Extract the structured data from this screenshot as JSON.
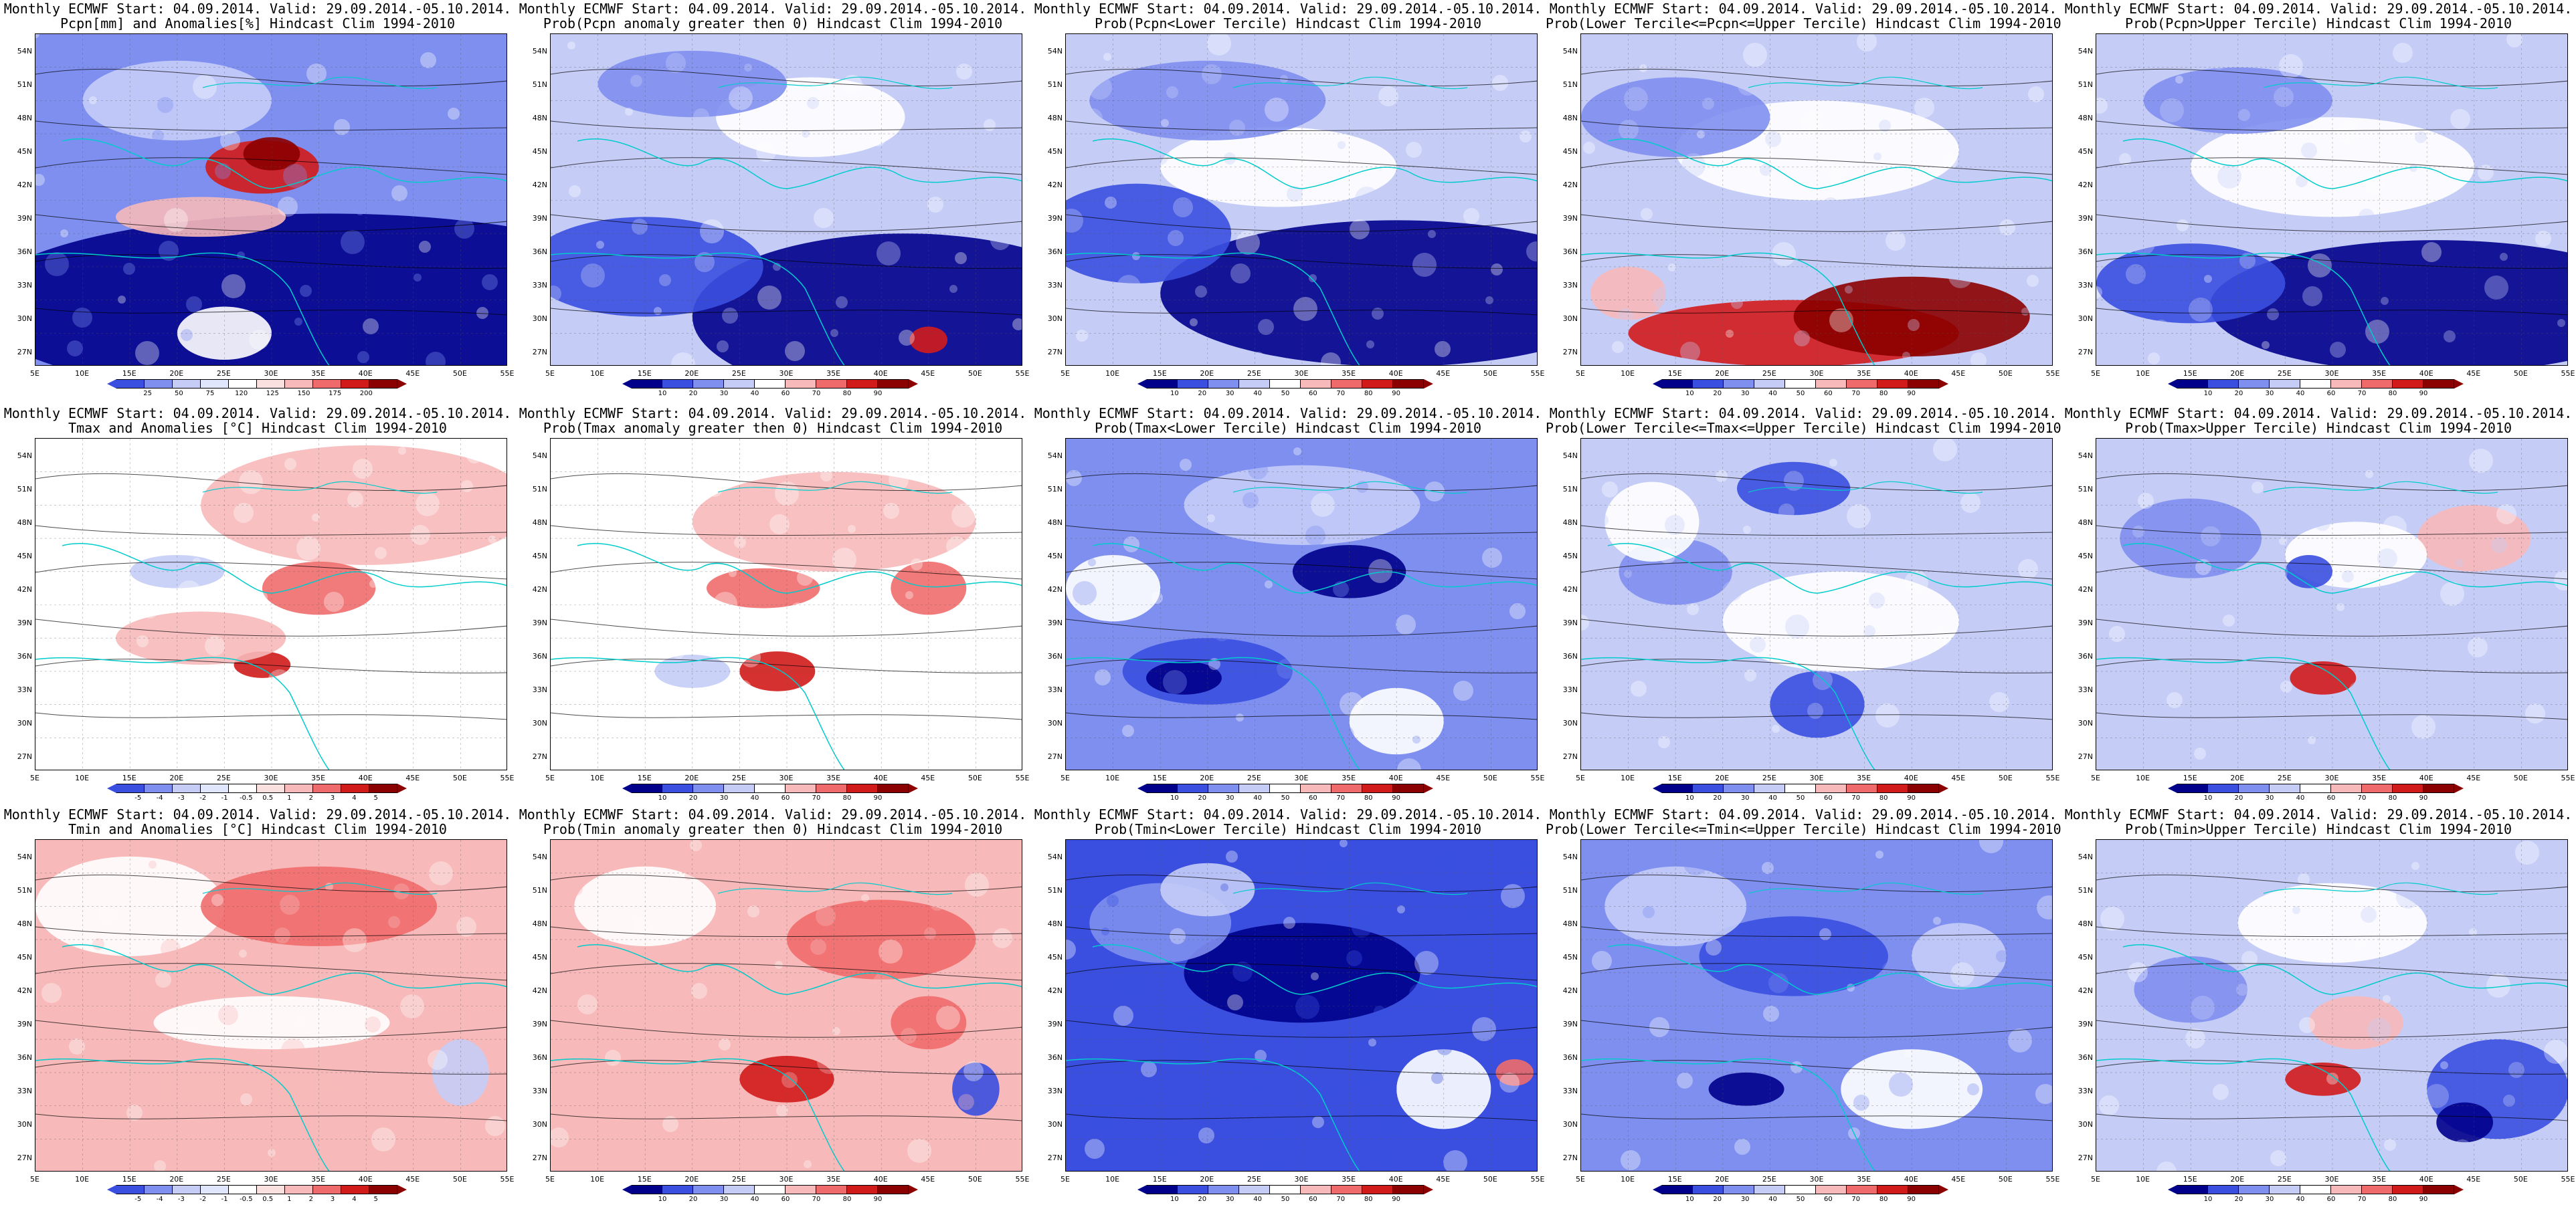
{
  "colors": {
    "deep_blue": "#00008b",
    "blue": "#3a4fe0",
    "mid_blue": "#7f8ff0",
    "light_blue": "#c5cdf7",
    "white": "#ffffff",
    "light_red": "#f7b9b9",
    "mid_red": "#ef6b6b",
    "red": "#d11b1b",
    "dark_red": "#8b0000",
    "coast": "#00cccc",
    "contour": "#000000"
  },
  "y_axis_labels": [
    "54N",
    "51N",
    "48N",
    "45N",
    "42N",
    "39N",
    "36N",
    "33N",
    "30N",
    "27N"
  ],
  "x_axis_labels": [
    "5E",
    "10E",
    "15E",
    "20E",
    "25E",
    "30E",
    "35E",
    "40E",
    "45E",
    "50E",
    "55E"
  ],
  "panels": [
    {
      "line1": "Monthly ECMWF Start: 04.09.2014. Valid: 29.09.2014.-05.10.2014.",
      "line2": "Pcpn[mm] and Anomalies[%] Hindcast Clim 1994-2010",
      "scheme": "pcpn_anom",
      "colorbar_ticks": [
        "25",
        "50",
        "75",
        "120",
        "125",
        "150",
        "175",
        "200"
      ]
    },
    {
      "line1": "Monthly ECMWF Start: 04.09.2014. Valid: 29.09.2014.-05.10.2014.",
      "line2": "Prob(Pcpn anomaly greater then 0) Hindcast Clim 1994-2010",
      "scheme": "pcpn_gt0",
      "colorbar_ticks": [
        "10",
        "20",
        "30",
        "40",
        "60",
        "70",
        "80",
        "90"
      ]
    },
    {
      "line1": "Monthly ECMWF Start: 04.09.2014. Valid: 29.09.2014.-05.10.2014.",
      "line2": "Prob(Pcpn<Lower Tercile) Hindcast Clim 1994-2010",
      "scheme": "pcpn_lower",
      "colorbar_ticks": [
        "10",
        "20",
        "30",
        "40",
        "50",
        "60",
        "70",
        "80",
        "90"
      ]
    },
    {
      "line1": "Monthly ECMWF Start: 04.09.2014. Valid: 29.09.2014.-05.10.2014.",
      "line2": "Prob(Lower Tercile<=Pcpn<=Upper Tercile) Hindcast Clim 1994-2010",
      "scheme": "pcpn_mid",
      "colorbar_ticks": [
        "10",
        "20",
        "30",
        "40",
        "50",
        "60",
        "70",
        "80",
        "90"
      ]
    },
    {
      "line1": "Monthly ECMWF Start: 04.09.2014. Valid: 29.09.2014.-05.10.2014.",
      "line2": "Prob(Pcpn>Upper Tercile) Hindcast Clim 1994-2010",
      "scheme": "pcpn_upper",
      "colorbar_ticks": [
        "10",
        "20",
        "30",
        "40",
        "60",
        "70",
        "80",
        "90"
      ]
    },
    {
      "line1": "Monthly ECMWF Start: 04.09.2014. Valid: 29.09.2014.-05.10.2014.",
      "line2": "Tmax and Anomalies [°C] Hindcast Clim 1994-2010",
      "scheme": "tmax_anom",
      "colorbar_ticks": [
        "-5",
        "-4",
        "-3",
        "-2",
        "-1",
        "-0.5",
        "0.5",
        "1",
        "2",
        "3",
        "4",
        "5"
      ]
    },
    {
      "line1": "Monthly ECMWF Start: 04.09.2014. Valid: 29.09.2014.-05.10.2014.",
      "line2": "Prob(Tmax anomaly greater then 0) Hindcast Clim 1994-2010",
      "scheme": "tmax_gt0",
      "colorbar_ticks": [
        "10",
        "20",
        "30",
        "40",
        "60",
        "70",
        "80",
        "90"
      ]
    },
    {
      "line1": "Monthly ECMWF Start: 04.09.2014. Valid: 29.09.2014.-05.10.2014.",
      "line2": "Prob(Tmax<Lower Tercile) Hindcast Clim 1994-2010",
      "scheme": "tmax_lower",
      "colorbar_ticks": [
        "10",
        "20",
        "30",
        "40",
        "50",
        "60",
        "70",
        "80",
        "90"
      ]
    },
    {
      "line1": "Monthly ECMWF Start: 04.09.2014. Valid: 29.09.2014.-05.10.2014.",
      "line2": "Prob(Lower Tercile<=Tmax<=Upper Tercile) Hindcast Clim 1994-2010",
      "scheme": "tmax_mid",
      "colorbar_ticks": [
        "10",
        "20",
        "30",
        "40",
        "50",
        "60",
        "70",
        "80",
        "90"
      ]
    },
    {
      "line1": "Monthly ECMWF Start: 04.09.2014. Valid: 29.09.2014.-05.10.2014.",
      "line2": "Prob(Tmax>Upper Tercile) Hindcast Clim 1994-2010",
      "scheme": "tmax_upper",
      "colorbar_ticks": [
        "10",
        "20",
        "30",
        "40",
        "60",
        "70",
        "80",
        "90"
      ]
    },
    {
      "line1": "Monthly ECMWF Start: 04.09.2014. Valid: 29.09.2014.-05.10.2014.",
      "line2": "Tmin and Anomalies [°C] Hindcast Clim 1994-2010",
      "scheme": "tmin_anom",
      "colorbar_ticks": [
        "-5",
        "-4",
        "-3",
        "-2",
        "-1",
        "-0.5",
        "0.5",
        "1",
        "2",
        "3",
        "4",
        "5"
      ]
    },
    {
      "line1": "Monthly ECMWF Start: 04.09.2014. Valid: 29.09.2014.-05.10.2014.",
      "line2": "Prob(Tmin anomaly greater then 0) Hindcast Clim 1994-2010",
      "scheme": "tmin_gt0",
      "colorbar_ticks": [
        "10",
        "20",
        "30",
        "40",
        "60",
        "70",
        "80",
        "90"
      ]
    },
    {
      "line1": "Monthly ECMWF Start: 04.09.2014. Valid: 29.09.2014.-05.10.2014.",
      "line2": "Prob(Tmin<Lower Tercile) Hindcast Clim 1994-2010",
      "scheme": "tmin_lower",
      "colorbar_ticks": [
        "10",
        "20",
        "30",
        "40",
        "50",
        "60",
        "70",
        "80",
        "90"
      ]
    },
    {
      "line1": "Monthly ECMWF Start: 04.09.2014. Valid: 29.09.2014.-05.10.2014.",
      "line2": "Prob(Lower Tercile<=Tmin<=Upper Tercile) Hindcast Clim 1994-2010",
      "scheme": "tmin_mid",
      "colorbar_ticks": [
        "10",
        "20",
        "30",
        "40",
        "50",
        "60",
        "70",
        "80",
        "90"
      ]
    },
    {
      "line1": "Monthly ECMWF Start: 04.09.2014. Valid: 29.09.2014.-05.10.2014.",
      "line2": "Prob(Tmin>Upper Tercile) Hindcast Clim 1994-2010",
      "scheme": "tmin_upper",
      "colorbar_ticks": [
        "10",
        "20",
        "30",
        "40",
        "60",
        "70",
        "80",
        "90"
      ]
    }
  ]
}
